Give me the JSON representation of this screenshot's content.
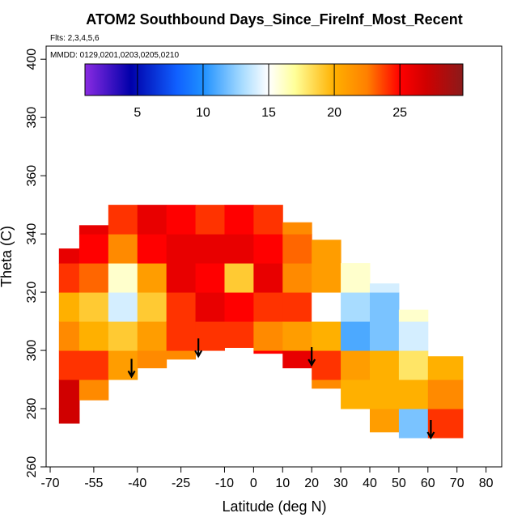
{
  "chart_data": {
    "type": "heatmap",
    "title": "ATOM2 Southbound Days_Since_FireInf_Most_Recent",
    "subtitle": "Flts: 2,3,4,5,6",
    "annotation": "MMDD: 0129,0201,0203,0205,0210",
    "x_label": "Latitude (deg N)",
    "y_label": "Theta (C)",
    "xlim": [
      -71.4,
      85.4
    ],
    "ylim": [
      260,
      404.5
    ],
    "xticks": [
      -70,
      -55,
      -40,
      -25,
      -10,
      0,
      10,
      20,
      30,
      40,
      50,
      60,
      70,
      80
    ],
    "yticks": [
      260,
      280,
      300,
      320,
      340,
      360,
      380,
      400
    ],
    "x_edges": [
      -67,
      -60,
      -50,
      -40,
      -30,
      -20,
      -10,
      0,
      10,
      20,
      30,
      40,
      50,
      60,
      72
    ],
    "y_edges": [
      270,
      280,
      290,
      300,
      310,
      320,
      330,
      340,
      350
    ],
    "column_bottom": [
      275,
      283,
      290,
      294,
      297,
      300,
      301,
      299,
      294,
      287,
      278,
      272,
      270,
      270
    ],
    "column_top": [
      335,
      343,
      351,
      351,
      351,
      351,
      350,
      350,
      344,
      338,
      330,
      323,
      314,
      298
    ],
    "values": [
      [
        27,
        27,
        24,
        22,
        20,
        24,
        26,
        null
      ],
      [
        null,
        22,
        24,
        20,
        19,
        23,
        25,
        26
      ],
      [
        null,
        null,
        21,
        19,
        14,
        16,
        22,
        24
      ],
      [
        null,
        null,
        22,
        21,
        19,
        21,
        25,
        26
      ],
      [
        null,
        null,
        22,
        24,
        24,
        26,
        26,
        25
      ],
      [
        null,
        null,
        null,
        24,
        26,
        25,
        26,
        24
      ],
      [
        null,
        null,
        null,
        24,
        25,
        19,
        26,
        25
      ],
      [
        null,
        null,
        25,
        22,
        24,
        26,
        25,
        24
      ],
      [
        null,
        null,
        26,
        21,
        24,
        22,
        23,
        22
      ],
      [
        null,
        22,
        24,
        20,
        15,
        21,
        21,
        null
      ],
      [
        null,
        20,
        21,
        11,
        13,
        16,
        22,
        null
      ],
      [
        21,
        20,
        20,
        12,
        12,
        14,
        null,
        null
      ],
      [
        12,
        20,
        18,
        14,
        16,
        null,
        null,
        null
      ],
      [
        24,
        22,
        20,
        null,
        null,
        null,
        null,
        null
      ]
    ],
    "clim": [
      1,
      29.8
    ],
    "cticks": [
      5,
      10,
      15,
      20,
      25
    ],
    "colorscale": [
      {
        "value": 1,
        "color": "#8a2be2"
      },
      {
        "value": 4.5,
        "color": "#0000aa"
      },
      {
        "value": 8,
        "color": "#1060ff"
      },
      {
        "value": 10,
        "color": "#1e90ff"
      },
      {
        "value": 13,
        "color": "#a8dcff"
      },
      {
        "value": 15,
        "color": "#ffffff"
      },
      {
        "value": 17,
        "color": "#ffff99"
      },
      {
        "value": 20,
        "color": "#ffb000"
      },
      {
        "value": 22.5,
        "color": "#ff8000"
      },
      {
        "value": 25,
        "color": "#ff0000"
      },
      {
        "value": 27,
        "color": "#d00000"
      },
      {
        "value": 29.8,
        "color": "#8b1a1a"
      }
    ],
    "arrows": {
      "x": [
        -42,
        -19,
        20,
        61
      ],
      "y": [
        291,
        298,
        295,
        270
      ]
    }
  }
}
